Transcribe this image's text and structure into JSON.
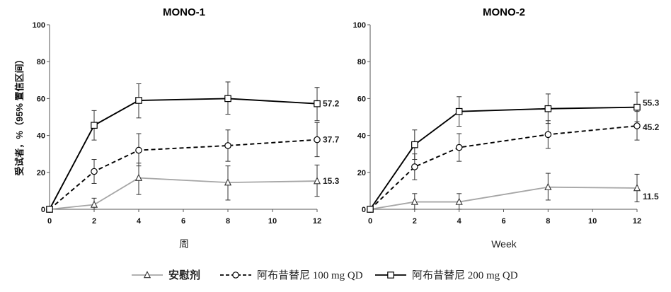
{
  "chart_data": [
    {
      "type": "line",
      "title": "MONO-1",
      "xlabel": "周",
      "ylabel": "受试者，%（95% 置信区间）",
      "xlim": [
        0,
        12
      ],
      "ylim": [
        0,
        100
      ],
      "xticks": [
        0,
        2,
        4,
        6,
        8,
        10,
        12
      ],
      "yticks": [
        0,
        20,
        40,
        60,
        80,
        100
      ],
      "x": [
        0,
        2,
        4,
        8,
        12
      ],
      "series": [
        {
          "name": "安慰剂",
          "values": [
            0,
            2.5,
            17,
            14.5,
            15.3
          ],
          "ci_low": [
            0,
            0,
            8,
            5,
            7
          ],
          "ci_high": [
            0,
            6,
            25,
            23.5,
            24
          ],
          "end_label": "15.3",
          "color": "#a6a6a6",
          "dash": "solid",
          "marker": "triangle"
        },
        {
          "name": "阿布昔替尼  100 mg QD",
          "values": [
            0,
            20.5,
            32,
            34.5,
            37.7
          ],
          "ci_low": [
            0,
            14,
            23.5,
            26,
            28.5
          ],
          "ci_high": [
            0,
            27,
            41,
            43,
            47
          ],
          "end_label": "37.7",
          "color": "#000000",
          "dash": "dashed",
          "marker": "circle"
        },
        {
          "name": "阿布昔替尼  200 mg QD",
          "values": [
            0,
            45.5,
            59,
            60,
            57.2
          ],
          "ci_low": [
            0,
            37.5,
            49.5,
            51.5,
            48
          ],
          "ci_high": [
            0,
            53.5,
            68,
            69,
            66
          ],
          "end_label": "57.2",
          "color": "#000000",
          "dash": "solid",
          "marker": "square"
        }
      ]
    },
    {
      "type": "line",
      "title": "MONO-2",
      "xlabel": "Week",
      "ylabel": "",
      "xlim": [
        0,
        12
      ],
      "ylim": [
        0,
        100
      ],
      "xticks": [
        0,
        2,
        4,
        6,
        8,
        10,
        12
      ],
      "yticks": [
        0,
        20,
        40,
        60,
        80,
        100
      ],
      "x": [
        0,
        2,
        4,
        8,
        12
      ],
      "series": [
        {
          "name": "安慰剂",
          "values": [
            0,
            4,
            4,
            12,
            11.5
          ],
          "ci_low": [
            0,
            0,
            0,
            5,
            4
          ],
          "ci_high": [
            0,
            8.5,
            8.5,
            19.5,
            19
          ],
          "end_label": "11.5",
          "color": "#a6a6a6",
          "dash": "solid",
          "marker": "triangle"
        },
        {
          "name": "阿布昔替尼  100 mg QD",
          "values": [
            0,
            23,
            33.5,
            40.5,
            45.2
          ],
          "ci_low": [
            0,
            16,
            26,
            33,
            37.5
          ],
          "ci_high": [
            0,
            30,
            41,
            48,
            53
          ],
          "end_label": "45.2",
          "color": "#000000",
          "dash": "dashed",
          "marker": "circle"
        },
        {
          "name": "阿布昔替尼  200 mg QD",
          "values": [
            0,
            35,
            53,
            54.5,
            55.3
          ],
          "ci_low": [
            0,
            27,
            45,
            46.5,
            47.5
          ],
          "ci_high": [
            0,
            43,
            61,
            62.5,
            63.5
          ],
          "end_label": "55.3",
          "color": "#000000",
          "dash": "solid",
          "marker": "square"
        }
      ]
    }
  ],
  "legend": {
    "placement": "bottom",
    "items": [
      {
        "label": "安慰剂",
        "marker": "triangle",
        "dash": "solid",
        "color": "#a6a6a6"
      },
      {
        "label": "阿布昔替尼  100 mg QD",
        "marker": "circle",
        "dash": "dashed",
        "color": "#000000"
      },
      {
        "label": "阿布昔替尼  200 mg QD",
        "marker": "square",
        "dash": "solid",
        "color": "#000000"
      }
    ]
  }
}
